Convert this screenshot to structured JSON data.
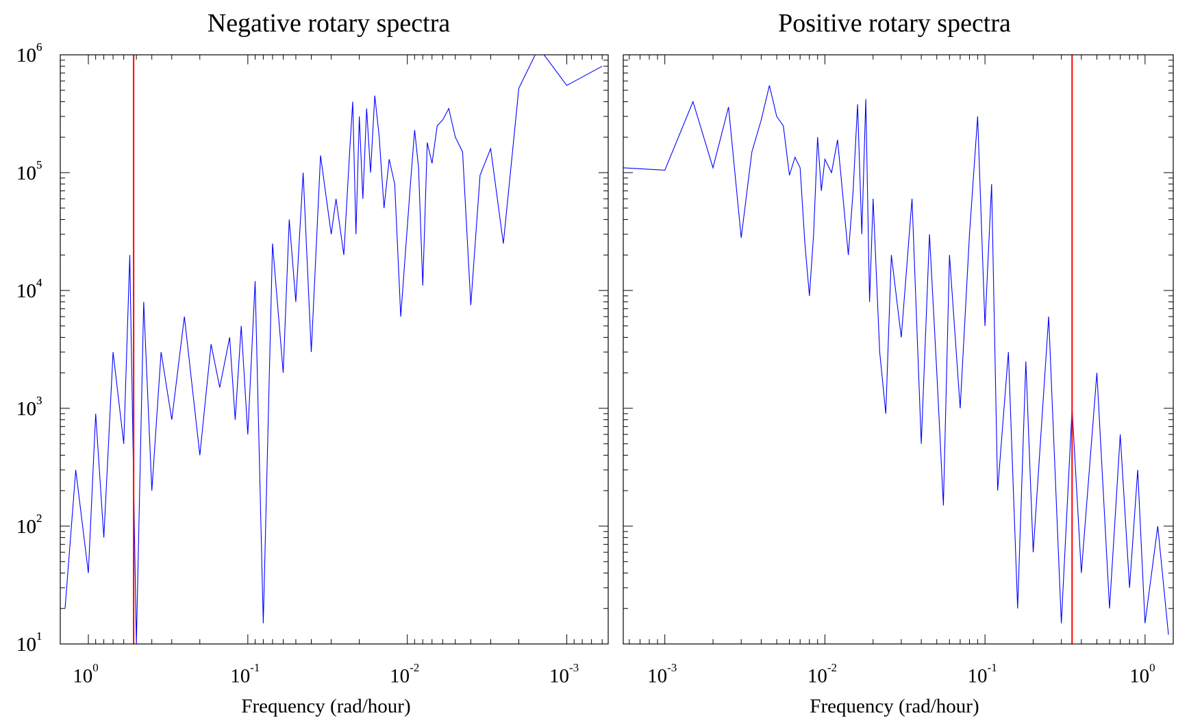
{
  "chart_data": [
    {
      "type": "line",
      "title": "Negative rotary spectra",
      "xlabel": "Frequency (rad/hour)",
      "ylabel": "",
      "xscale": "log",
      "yscale": "log",
      "x_reversed": true,
      "xlim": [
        1.5,
        0.00055
      ],
      "ylim": [
        10,
        1000000
      ],
      "xticks": [
        {
          "base": "10",
          "exp": "0",
          "value": 1
        },
        {
          "base": "10",
          "exp": "-1",
          "value": 0.1
        },
        {
          "base": "10",
          "exp": "-2",
          "value": 0.01
        },
        {
          "base": "10",
          "exp": "-3",
          "value": 0.001
        }
      ],
      "yticks": [
        {
          "base": "10",
          "exp": "1",
          "value": 10
        },
        {
          "base": "10",
          "exp": "2",
          "value": 100
        },
        {
          "base": "10",
          "exp": "3",
          "value": 1000
        },
        {
          "base": "10",
          "exp": "4",
          "value": 10000
        },
        {
          "base": "10",
          "exp": "5",
          "value": 100000
        },
        {
          "base": "10",
          "exp": "6",
          "value": 1000000
        }
      ],
      "reference_line": {
        "x": 0.52,
        "color": "#ff0000"
      },
      "series": [
        {
          "color": "#0000ff",
          "points": [
            [
              0.0006,
              800000
            ],
            [
              0.001,
              550000
            ],
            [
              0.0015,
              1150000
            ],
            [
              0.002,
              520000
            ],
            [
              0.0025,
              25000
            ],
            [
              0.003,
              160000
            ],
            [
              0.0035,
              95000
            ],
            [
              0.004,
              7500
            ],
            [
              0.0045,
              150000
            ],
            [
              0.005,
              200000
            ],
            [
              0.0055,
              350000
            ],
            [
              0.006,
              280000
            ],
            [
              0.0065,
              250000
            ],
            [
              0.007,
              120000
            ],
            [
              0.0075,
              180000
            ],
            [
              0.008,
              11000
            ],
            [
              0.0085,
              110000
            ],
            [
              0.009,
              230000
            ],
            [
              0.0095,
              90000
            ],
            [
              0.011,
              6000
            ],
            [
              0.012,
              80000
            ],
            [
              0.013,
              130000
            ],
            [
              0.014,
              50000
            ],
            [
              0.015,
              200000
            ],
            [
              0.016,
              450000
            ],
            [
              0.017,
              100000
            ],
            [
              0.018,
              350000
            ],
            [
              0.019,
              60000
            ],
            [
              0.02,
              300000
            ],
            [
              0.021,
              30000
            ],
            [
              0.022,
              400000
            ],
            [
              0.023,
              150000
            ],
            [
              0.025,
              20000
            ],
            [
              0.028,
              60000
            ],
            [
              0.03,
              30000
            ],
            [
              0.035,
              140000
            ],
            [
              0.04,
              3000
            ],
            [
              0.045,
              100000
            ],
            [
              0.05,
              8000
            ],
            [
              0.055,
              40000
            ],
            [
              0.06,
              2000
            ],
            [
              0.07,
              25000
            ],
            [
              0.08,
              15
            ],
            [
              0.09,
              12000
            ],
            [
              0.1,
              600
            ],
            [
              0.11,
              5000
            ],
            [
              0.12,
              800
            ],
            [
              0.13,
              4000
            ],
            [
              0.15,
              1500
            ],
            [
              0.17,
              3500
            ],
            [
              0.2,
              400
            ],
            [
              0.25,
              6000
            ],
            [
              0.3,
              800
            ],
            [
              0.35,
              3000
            ],
            [
              0.4,
              200
            ],
            [
              0.45,
              8000
            ],
            [
              0.5,
              10
            ],
            [
              0.55,
              20000
            ],
            [
              0.6,
              500
            ],
            [
              0.7,
              3000
            ],
            [
              0.8,
              80
            ],
            [
              0.9,
              900
            ],
            [
              1.0,
              40
            ],
            [
              1.2,
              300
            ],
            [
              1.4,
              20
            ]
          ]
        }
      ]
    },
    {
      "type": "line",
      "title": "Positive rotary spectra",
      "xlabel": "Frequency (rad/hour)",
      "ylabel": "",
      "xscale": "log",
      "yscale": "log",
      "x_reversed": false,
      "xlim": [
        0.00055,
        1.5
      ],
      "ylim": [
        10,
        1000000
      ],
      "xticks": [
        {
          "base": "10",
          "exp": "-3",
          "value": 0.001
        },
        {
          "base": "10",
          "exp": "-2",
          "value": 0.01
        },
        {
          "base": "10",
          "exp": "-1",
          "value": 0.1
        },
        {
          "base": "10",
          "exp": "0",
          "value": 1
        }
      ],
      "yticks": [
        {
          "base": "10",
          "exp": "1",
          "value": 10
        },
        {
          "base": "10",
          "exp": "2",
          "value": 100
        },
        {
          "base": "10",
          "exp": "3",
          "value": 1000
        },
        {
          "base": "10",
          "exp": "4",
          "value": 10000
        },
        {
          "base": "10",
          "exp": "5",
          "value": 100000
        },
        {
          "base": "10",
          "exp": "6",
          "value": 1000000
        }
      ],
      "reference_line": {
        "x": 0.35,
        "color": "#ff0000"
      },
      "series": [
        {
          "color": "#0000ff",
          "points": [
            [
              0.00055,
              110000
            ],
            [
              0.001,
              105000
            ],
            [
              0.0015,
              400000
            ],
            [
              0.002,
              110000
            ],
            [
              0.0025,
              360000
            ],
            [
              0.003,
              28000
            ],
            [
              0.0035,
              150000
            ],
            [
              0.004,
              280000
            ],
            [
              0.0045,
              550000
            ],
            [
              0.005,
              300000
            ],
            [
              0.0055,
              250000
            ],
            [
              0.006,
              95000
            ],
            [
              0.0065,
              135000
            ],
            [
              0.007,
              110000
            ],
            [
              0.0075,
              25000
            ],
            [
              0.008,
              9000
            ],
            [
              0.0085,
              30000
            ],
            [
              0.009,
              200000
            ],
            [
              0.0095,
              70000
            ],
            [
              0.01,
              130000
            ],
            [
              0.011,
              100000
            ],
            [
              0.012,
              190000
            ],
            [
              0.013,
              60000
            ],
            [
              0.014,
              20000
            ],
            [
              0.015,
              70000
            ],
            [
              0.016,
              380000
            ],
            [
              0.017,
              30000
            ],
            [
              0.018,
              420000
            ],
            [
              0.019,
              8000
            ],
            [
              0.02,
              60000
            ],
            [
              0.022,
              3000
            ],
            [
              0.024,
              900
            ],
            [
              0.026,
              20000
            ],
            [
              0.03,
              4000
            ],
            [
              0.035,
              60000
            ],
            [
              0.04,
              500
            ],
            [
              0.045,
              30000
            ],
            [
              0.05,
              2000
            ],
            [
              0.055,
              150
            ],
            [
              0.06,
              20000
            ],
            [
              0.07,
              1000
            ],
            [
              0.08,
              30000
            ],
            [
              0.09,
              300000
            ],
            [
              0.1,
              5000
            ],
            [
              0.11,
              80000
            ],
            [
              0.12,
              200
            ],
            [
              0.14,
              3000
            ],
            [
              0.16,
              20
            ],
            [
              0.18,
              2500
            ],
            [
              0.2,
              60
            ],
            [
              0.25,
              6000
            ],
            [
              0.3,
              15
            ],
            [
              0.35,
              1000
            ],
            [
              0.4,
              40
            ],
            [
              0.5,
              2000
            ],
            [
              0.6,
              20
            ],
            [
              0.7,
              600
            ],
            [
              0.8,
              30
            ],
            [
              0.9,
              300
            ],
            [
              1.0,
              15
            ],
            [
              1.2,
              100
            ],
            [
              1.4,
              12
            ]
          ]
        }
      ]
    }
  ]
}
